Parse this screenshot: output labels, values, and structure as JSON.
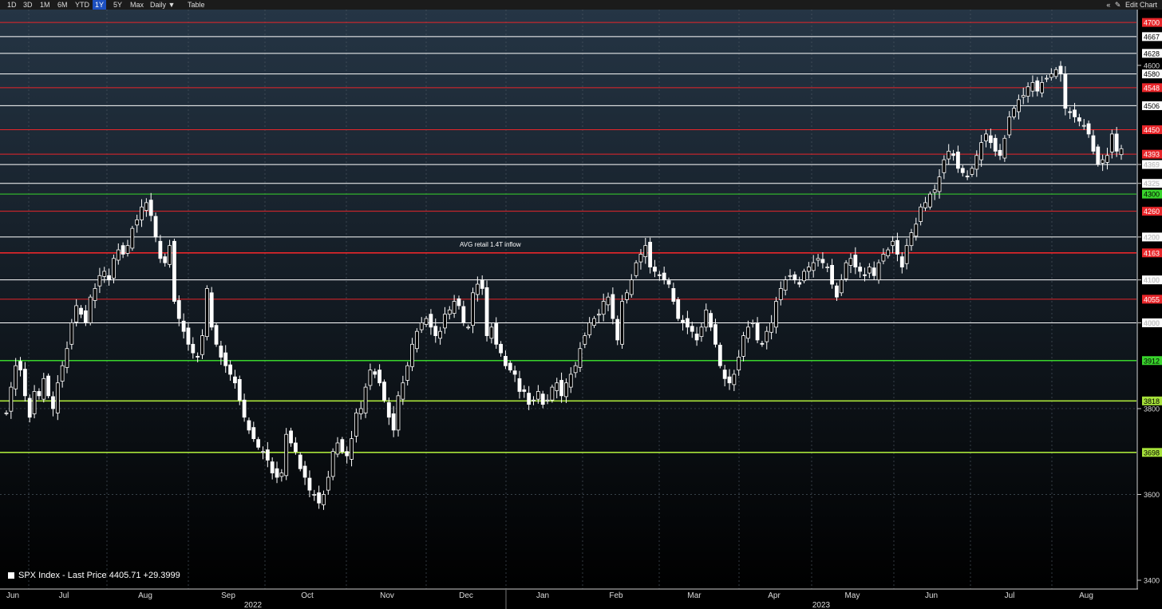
{
  "toolbar": {
    "ranges": [
      {
        "label": "1D",
        "active": false
      },
      {
        "label": "3D",
        "active": false
      },
      {
        "label": "1M",
        "active": false
      },
      {
        "label": "6M",
        "active": false
      },
      {
        "label": "YTD",
        "active": false
      },
      {
        "label": "1Y",
        "active": true
      },
      {
        "label": "5Y",
        "active": false
      },
      {
        "label": "Max",
        "active": false
      }
    ],
    "frequency": "Daily ▼",
    "table": "Table",
    "collapse_icon": "«",
    "edit_chart": "Edit Chart"
  },
  "legend": {
    "label": "SPX Index - Last Price 4405.71 +29.3999"
  },
  "annotation": "AVG retail 1.4T inflow",
  "colors": {
    "background_top": "#253545",
    "background_bottom": "#000000",
    "red": "#e8262a",
    "green": "#39d42c",
    "lime": "#a7e23a",
    "white": "#ffffff"
  },
  "chart_data": {
    "type": "candlestick",
    "ylim": [
      3400,
      4730
    ],
    "y_ticks": [
      3400,
      3600,
      3800,
      4000,
      4100,
      4200,
      4325,
      4369,
      4600
    ],
    "x_labels": [
      "Jun",
      "Jul",
      "Aug",
      "Sep",
      "Oct",
      "Nov",
      "Dec",
      "Jan",
      "Feb",
      "Mar",
      "Apr",
      "May",
      "Jun",
      "Jul",
      "Aug"
    ],
    "year_labels": [
      "2022",
      "2023"
    ],
    "levels": [
      {
        "value": 4700,
        "color": "red",
        "label": "4700"
      },
      {
        "value": 4667,
        "color": "white",
        "label": "4667"
      },
      {
        "value": 4628,
        "color": "white",
        "label": "4628"
      },
      {
        "value": 4580,
        "color": "white",
        "label": "4580"
      },
      {
        "value": 4548,
        "color": "red",
        "label": "4548"
      },
      {
        "value": 4506,
        "color": "white",
        "label": "4506"
      },
      {
        "value": 4450,
        "color": "red",
        "label": "4450"
      },
      {
        "value": 4393,
        "color": "red",
        "label": "4393"
      },
      {
        "value": 4369,
        "color": "white",
        "label": "4369"
      },
      {
        "value": 4325,
        "color": "white",
        "label": "4325"
      },
      {
        "value": 4300,
        "color": "green",
        "label": "4300"
      },
      {
        "value": 4260,
        "color": "red",
        "label": "4260"
      },
      {
        "value": 4200,
        "color": "white",
        "label": "4200"
      },
      {
        "value": 4163,
        "color": "red",
        "label": "4163"
      },
      {
        "value": 4100,
        "color": "white",
        "label": "4100"
      },
      {
        "value": 4055,
        "color": "red",
        "label": "4055"
      },
      {
        "value": 4000,
        "color": "white",
        "label": "4000"
      },
      {
        "value": 3912,
        "color": "green",
        "label": "3912"
      },
      {
        "value": 3818,
        "color": "lime",
        "label": "3818"
      },
      {
        "value": 3698,
        "color": "lime",
        "label": "3698"
      }
    ],
    "close": [
      3790,
      3850,
      3900,
      3890,
      3830,
      3780,
      3840,
      3830,
      3870,
      3830,
      3800,
      3860,
      3900,
      3940,
      4000,
      4040,
      4020,
      4000,
      4060,
      4080,
      4110,
      4120,
      4100,
      4150,
      4170,
      4160,
      4180,
      4220,
      4240,
      4270,
      4280,
      4250,
      4200,
      4150,
      4140,
      4180,
      4050,
      4010,
      3980,
      3950,
      3930,
      3920,
      3970,
      4080,
      3990,
      3950,
      3920,
      3900,
      3880,
      3860,
      3820,
      3780,
      3750,
      3730,
      3710,
      3700,
      3680,
      3650,
      3640,
      3650,
      3740,
      3720,
      3700,
      3660,
      3640,
      3610,
      3600,
      3580,
      3600,
      3640,
      3700,
      3720,
      3700,
      3690,
      3730,
      3790,
      3800,
      3850,
      3890,
      3880,
      3860,
      3820,
      3780,
      3750,
      3830,
      3860,
      3900,
      3950,
      3980,
      4000,
      4010,
      3990,
      3970,
      3980,
      4020,
      4030,
      4050,
      4040,
      4000,
      3990,
      4070,
      4090,
      4080,
      3970,
      3990,
      3950,
      3930,
      3900,
      3890,
      3880,
      3840,
      3840,
      3810,
      3820,
      3840,
      3810,
      3820,
      3850,
      3860,
      3830,
      3860,
      3880,
      3900,
      3940,
      3970,
      4000,
      4010,
      4020,
      4050,
      4060,
      4010,
      3960,
      4050,
      4070,
      4100,
      4140,
      4160,
      4180,
      4130,
      4120,
      4110,
      4100,
      4090,
      4050,
      4010,
      4000,
      3990,
      3980,
      3960,
      3990,
      4030,
      3990,
      3950,
      3900,
      3870,
      3860,
      3880,
      3920,
      3970,
      3990,
      4000,
      3960,
      3950,
      3980,
      4000,
      4050,
      4080,
      4100,
      4110,
      4100,
      4090,
      4120,
      4130,
      4140,
      4150,
      4140,
      4130,
      4090,
      4060,
      4100,
      4140,
      4150,
      4130,
      4120,
      4110,
      4130,
      4110,
      4140,
      4160,
      4170,
      4190,
      4160,
      4130,
      4180,
      4210,
      4230,
      4270,
      4280,
      4300,
      4310,
      4340,
      4380,
      4400,
      4390,
      4360,
      4350,
      4340,
      4360,
      4390,
      4420,
      4440,
      4420,
      4400,
      4390,
      4430,
      4480,
      4500,
      4520,
      4530,
      4550,
      4560,
      4540,
      4560,
      4570,
      4580,
      4590,
      4580,
      4500,
      4490,
      4480,
      4470,
      4460,
      4440,
      4400,
      4370,
      4380,
      4390,
      4440,
      4400,
      4405.71
    ]
  }
}
